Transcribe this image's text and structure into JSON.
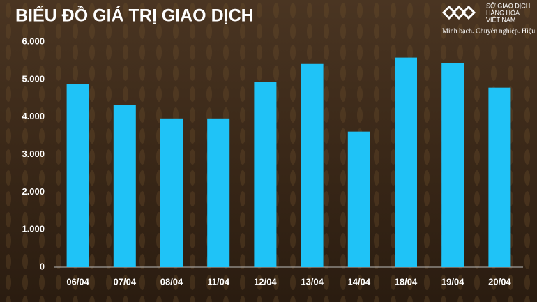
{
  "chart_data": {
    "type": "bar",
    "title": "BIỂU ĐỒ GIÁ TRỊ GIAO DỊCH",
    "logo": {
      "lines": [
        "SỞ GIAO DỊCH",
        "HÀNG HÓA",
        "VIỆT NAM"
      ],
      "slogan": "Minh bạch. Chuyên nghiệp. Hiệu quả"
    },
    "categories": [
      "06/04",
      "07/04",
      "08/04",
      "11/04",
      "12/04",
      "13/04",
      "14/04",
      "18/04",
      "19/04",
      "20/04"
    ],
    "values": [
      4870,
      4310,
      3960,
      3960,
      4940,
      5410,
      3610,
      5580,
      5430,
      4780
    ],
    "color": "#1fc3f7",
    "ylim": [
      0,
      6000
    ],
    "yticks": [
      0,
      {
        "value": 1000,
        "label": "1.000"
      },
      {
        "value": 2000,
        "label": "2.000"
      },
      {
        "value": 3000,
        "label": "3.000"
      },
      {
        "value": 4000,
        "label": "4.000"
      },
      {
        "value": 5000,
        "label": "5.000"
      },
      {
        "value": 6000,
        "label": "6.000"
      }
    ],
    "grid": false
  }
}
